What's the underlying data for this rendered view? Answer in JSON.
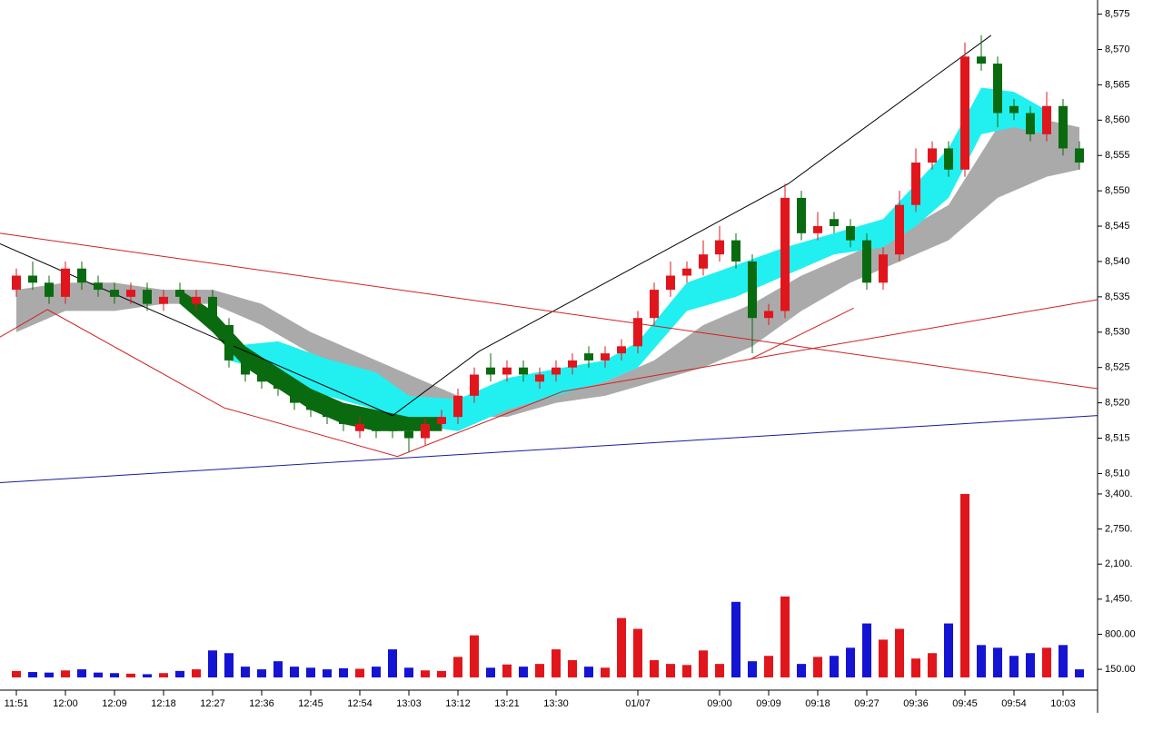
{
  "chart_data": {
    "type": "candlestick",
    "categories": [
      "11:51",
      null,
      null,
      "12:00",
      null,
      null,
      "12:09",
      null,
      null,
      "12:18",
      null,
      null,
      "12:27",
      null,
      null,
      "12:36",
      null,
      null,
      "12:45",
      null,
      null,
      "12:54",
      null,
      null,
      "13:03",
      null,
      null,
      "13:12",
      null,
      null,
      "13:21",
      null,
      null,
      "13:30",
      null,
      null,
      null,
      null,
      "01/07",
      null,
      null,
      null,
      null,
      "09:00",
      null,
      null,
      "09:09",
      null,
      null,
      "09:18",
      null,
      null,
      "09:27",
      null,
      null,
      "09:36",
      null,
      null,
      "09:45",
      null,
      null,
      "09:54",
      null,
      null,
      "10:03",
      null
    ],
    "open": [
      8536,
      8538,
      8537,
      8535,
      8539,
      8537,
      8536,
      8535,
      8536,
      8534,
      8536,
      8534,
      8535,
      8531,
      8526,
      8524,
      8523,
      8522,
      8520,
      8519,
      8518,
      8516,
      8517,
      8517,
      8516,
      8515,
      8517,
      8518,
      8521,
      8525,
      8524,
      8525,
      8523,
      8524,
      8525,
      8527,
      8526,
      8527,
      8528,
      8532,
      8536,
      8538,
      8539,
      8541,
      8543,
      8540,
      8532,
      8533,
      8549,
      8544,
      8546,
      8545,
      8543,
      8537,
      8541,
      8548,
      8554,
      8556,
      8553,
      8569,
      8568,
      8562,
      8561,
      8558,
      8562,
      8556
    ],
    "high": [
      8539,
      8540,
      8538,
      8540,
      8540,
      8538,
      8537,
      8537,
      8537,
      8536,
      8537,
      8536,
      8536,
      8532,
      8527,
      8525,
      8524,
      8523,
      8521,
      8520,
      8519,
      8518,
      8518,
      8518,
      8517,
      8518,
      8519,
      8522,
      8525,
      8527,
      8526,
      8526,
      8525,
      8526,
      8527,
      8528,
      8528,
      8529,
      8533,
      8537,
      8540,
      8540,
      8543,
      8545,
      8544,
      8541,
      8534,
      8551,
      8550,
      8547,
      8547,
      8546,
      8544,
      8542,
      8550,
      8556,
      8557,
      8557,
      8571,
      8572,
      8569,
      8563,
      8562,
      8564,
      8563,
      8557
    ],
    "low": [
      8535,
      8536,
      8534,
      8534,
      8536,
      8535,
      8534,
      8534,
      8533,
      8533,
      8534,
      8533,
      8530,
      8525,
      8523,
      8522,
      8521,
      8519,
      8518,
      8517,
      8516,
      8515,
      8515,
      8515,
      8513,
      8514,
      8516,
      8517,
      8520,
      8523,
      8523,
      8523,
      8522,
      8523,
      8524,
      8525,
      8525,
      8526,
      8527,
      8531,
      8535,
      8537,
      8538,
      8540,
      8539,
      8527,
      8531,
      8532,
      8543,
      8543,
      8544,
      8542,
      8536,
      8536,
      8540,
      8547,
      8553,
      8552,
      8552,
      8567,
      8559,
      8560,
      8557,
      8557,
      8555,
      8553
    ],
    "close": [
      8538,
      8537,
      8535,
      8539,
      8537,
      8536,
      8535,
      8536,
      8534,
      8535,
      8535,
      8535,
      8531,
      8526,
      8524,
      8523,
      8522,
      8520,
      8519,
      8518,
      8517,
      8517,
      8516,
      8516,
      8515,
      8517,
      8518,
      8521,
      8524,
      8524,
      8525,
      8524,
      8524,
      8525,
      8526,
      8526,
      8527,
      8528,
      8532,
      8536,
      8538,
      8539,
      8541,
      8543,
      8540,
      8532,
      8533,
      8549,
      8544,
      8545,
      8545,
      8543,
      8537,
      8541,
      8548,
      8554,
      8556,
      8553,
      8569,
      8568,
      8561,
      8561,
      8558,
      8562,
      8556,
      8554
    ],
    "up_color": "#e0161c",
    "down_color": "#0a6a10",
    "ylim": [
      8508,
      8577
    ],
    "yticks": [
      {
        "value": 8510,
        "label": "8,510"
      },
      {
        "value": 8515,
        "label": "8,515"
      },
      {
        "value": 8520,
        "label": "8,520"
      },
      {
        "value": 8525,
        "label": "8,525"
      },
      {
        "value": 8530,
        "label": "8,530"
      },
      {
        "value": 8535,
        "label": "8,535"
      },
      {
        "value": 8540,
        "label": "8,540"
      },
      {
        "value": 8545,
        "label": "8,545"
      },
      {
        "value": 8550,
        "label": "8,550"
      },
      {
        "value": 8555,
        "label": "8,555"
      },
      {
        "value": 8560,
        "label": "8,560"
      },
      {
        "value": 8565,
        "label": "8,565"
      },
      {
        "value": 8570,
        "label": "8,570"
      },
      {
        "value": 8575,
        "label": "8,575"
      }
    ],
    "bands": [
      {
        "color": "#aaaaaa",
        "x": [
          0,
          3,
          6,
          9,
          12,
          15,
          18,
          21,
          24,
          27,
          30,
          33,
          36,
          39,
          42,
          45,
          48,
          51,
          54,
          57,
          60,
          63,
          65
        ],
        "upper": [
          8536,
          8537,
          8537,
          8536,
          8536,
          8534,
          8530,
          8527,
          8524,
          8521,
          8520,
          8522,
          8523,
          8526,
          8531,
          8534,
          8538,
          8541,
          8544,
          8548,
          8559,
          8560,
          8559
        ],
        "lower": [
          8530,
          8533,
          8533,
          8534,
          8534,
          8531,
          8527,
          8524,
          8521,
          8518,
          8518,
          8520,
          8521,
          8523,
          8525,
          8528,
          8533,
          8537,
          8540,
          8543,
          8549,
          8552,
          8553
        ]
      },
      {
        "color": "#22f0f0",
        "x": [
          13,
          16,
          19,
          22,
          24,
          27,
          30,
          33,
          36,
          38,
          41,
          44,
          47,
          50,
          53,
          55,
          57,
          59,
          61,
          63
        ],
        "upper": [
          8528,
          8528.7,
          8526.2,
          8524.3,
          8521,
          8520.5,
          8523.5,
          8524.8,
          8526,
          8528.6,
          8537,
          8539.5,
          8542,
          8544,
          8546,
          8551,
          8556,
          8564.6,
          8564,
          8561.4
        ],
        "lower": [
          8526,
          8524,
          8521,
          8519,
          8517,
          8516,
          8519,
          8521,
          8523,
          8525,
          8533,
          8535,
          8538,
          8541,
          8542,
          8545,
          8549,
          8558,
          8559,
          8558
        ]
      },
      {
        "color": "#0a6a10",
        "x": [
          10,
          12,
          14,
          16,
          18,
          20,
          22,
          24,
          26
        ],
        "upper": [
          8536,
          8533,
          8528,
          8525,
          8522,
          8520,
          8519,
          8518,
          8518
        ],
        "lower": [
          8534,
          8530,
          8525,
          8522,
          8519,
          8517,
          8516,
          8516,
          8516
        ]
      }
    ],
    "trend_lines": [
      {
        "color": "#000000",
        "x": [
          -1,
          23,
          28.3,
          47.2,
          59.6
        ],
        "values": [
          8542.5,
          8518.2,
          8527.3,
          8551,
          8572
        ]
      },
      {
        "color": "#d02020",
        "x": [
          -1,
          66.1
        ],
        "values": [
          8544,
          8522
        ]
      },
      {
        "color": "#d02020",
        "x": [
          -1,
          1.9,
          12.7,
          23.3,
          33.4,
          44.9,
          51.2
        ],
        "values": [
          8529.3,
          8533.2,
          8519.3,
          8512.4,
          8521.6,
          8526.2,
          8533.4
        ]
      },
      {
        "color": "#d02020",
        "x": [
          44.9,
          66.1
        ],
        "values": [
          8526.2,
          8534.6
        ]
      },
      {
        "color": "#1a1a9a",
        "x": [
          -1,
          66.1
        ],
        "values": [
          8508.7,
          8518.2
        ]
      }
    ],
    "volume": {
      "values": [
        120,
        100,
        90,
        130,
        150,
        90,
        80,
        70,
        60,
        80,
        120,
        150,
        500,
        450,
        200,
        150,
        300,
        200,
        180,
        150,
        170,
        160,
        200,
        520,
        180,
        130,
        120,
        380,
        780,
        180,
        240,
        200,
        250,
        520,
        320,
        200,
        180,
        1100,
        900,
        320,
        250,
        230,
        500,
        250,
        1400,
        300,
        400,
        1500,
        250,
        380,
        400,
        550,
        1000,
        700,
        900,
        350,
        450,
        1000,
        3400,
        600,
        550,
        400,
        450,
        550,
        600,
        150
      ],
      "up_color": "#e0161c",
      "down_color": "#1414d2",
      "ylim": [
        0,
        3500
      ],
      "yticks": [
        {
          "value": 150,
          "label": "150.00"
        },
        {
          "value": 800,
          "label": "800.00"
        },
        {
          "value": 1450,
          "label": "1,450."
        },
        {
          "value": 2100,
          "label": "2,100."
        },
        {
          "value": 2750,
          "label": "2,750."
        },
        {
          "value": 3400,
          "label": "3,400."
        }
      ]
    }
  }
}
